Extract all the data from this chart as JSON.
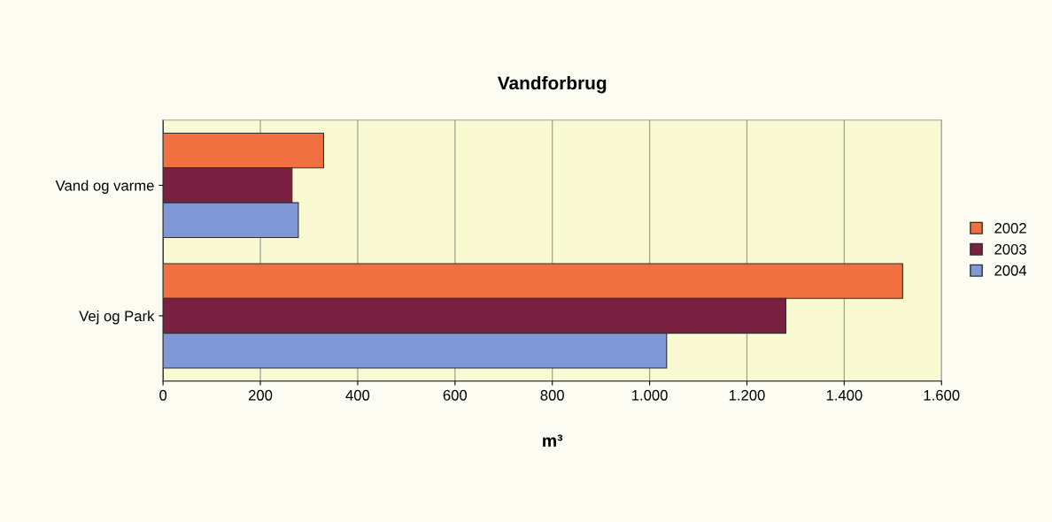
{
  "chart_data": {
    "type": "bar",
    "orientation": "horizontal",
    "title": "Vandforbrug",
    "xlabel": "m³",
    "categories": [
      "Vand og varme",
      "Vej og Park"
    ],
    "series": [
      {
        "name": "2002",
        "color": "#f07040",
        "values": [
          330,
          1520
        ]
      },
      {
        "name": "2003",
        "color": "#7a2040",
        "values": [
          265,
          1280
        ]
      },
      {
        "name": "2004",
        "color": "#8098d8",
        "values": [
          278,
          1035
        ]
      }
    ],
    "xlim": [
      0,
      1600
    ],
    "xticks": [
      0,
      200,
      400,
      600,
      800,
      {
        "value": 1000,
        "label": "1.000"
      },
      {
        "value": 1200,
        "label": "1.200"
      },
      {
        "value": 1400,
        "label": "1.400"
      },
      {
        "value": 1600,
        "label": "1.600"
      }
    ],
    "grid": "x",
    "legend": "right"
  }
}
